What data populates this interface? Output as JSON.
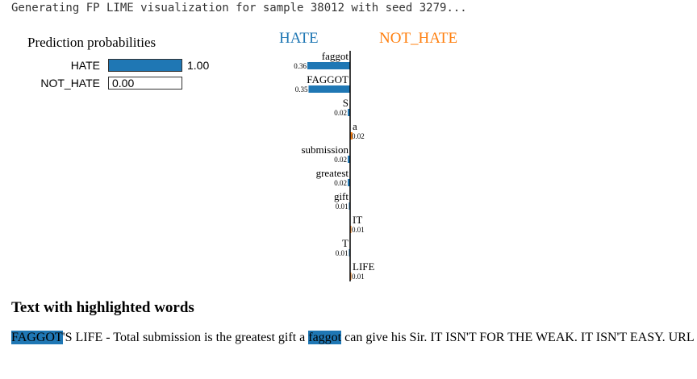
{
  "log_line": "Generating FP LIME visualization for sample 38012 with seed 3279...",
  "prediction": {
    "title": "Prediction probabilities",
    "rows": [
      {
        "label": "HATE",
        "value": "1.00",
        "fraction": 1.0,
        "color": "#1f77b4"
      },
      {
        "label": "NOT_HATE",
        "value": "0.00",
        "fraction": 0.0,
        "color": "#ff7f0e"
      }
    ]
  },
  "explanation": {
    "left_class": "HATE",
    "right_class": "NOT_HATE",
    "left_color": "#1f77b4",
    "right_color": "#ff7f0e"
  },
  "chart_data": {
    "type": "bar",
    "orientation": "horizontal",
    "categories": [
      "faggot",
      "FAGGOT",
      "S",
      "a",
      "submission",
      "greatest",
      "gift",
      "IT",
      "T",
      "LIFE"
    ],
    "values": [
      0.36,
      0.35,
      0.02,
      0.02,
      0.02,
      0.02,
      0.01,
      0.01,
      0.01,
      0.01
    ],
    "value_labels": [
      "0.36",
      "0.35",
      "0.02",
      "0.02",
      "0.02",
      "0.02",
      "0.01",
      "0.01",
      "0.01",
      "0.01"
    ],
    "sides": [
      "HATE",
      "HATE",
      "HATE",
      "NOT_HATE",
      "HATE",
      "HATE",
      "HATE",
      "NOT_HATE",
      "HATE",
      "NOT_HATE"
    ],
    "xlim": [
      -0.36,
      0.36
    ]
  },
  "highlighted_text": {
    "title": "Text with highlighted words",
    "segments": [
      {
        "text": "FAGGOT",
        "highlight": true,
        "color": "#1f77b4"
      },
      {
        "text": "'S LIFE - Total submission is the greatest gift a ",
        "highlight": false
      },
      {
        "text": "faggot",
        "highlight": true,
        "color": "#1f77b4"
      },
      {
        "text": " can give his Sir. IT ISN'T FOR THE WEAK. IT ISN'T EASY. URL",
        "highlight": false
      }
    ]
  }
}
